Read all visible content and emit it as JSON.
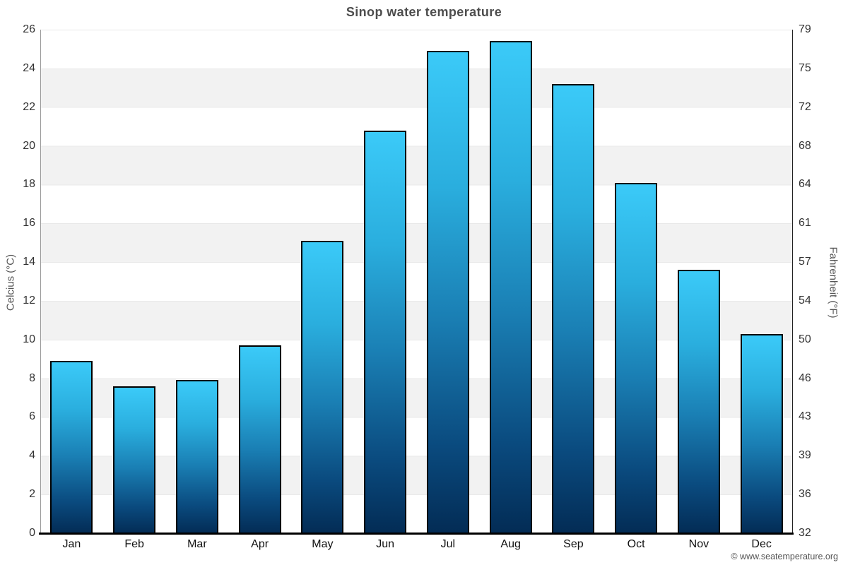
{
  "title": "Sinop water temperature",
  "footer": "© www.seatemperature.org",
  "chart_data": {
    "type": "bar",
    "title": "Sinop water temperature",
    "categories": [
      "Jan",
      "Feb",
      "Mar",
      "Apr",
      "May",
      "Jun",
      "Jul",
      "Aug",
      "Sep",
      "Oct",
      "Nov",
      "Dec"
    ],
    "values": [
      8.9,
      7.6,
      7.9,
      9.7,
      15.1,
      20.8,
      24.9,
      25.4,
      23.2,
      18.1,
      13.6,
      10.3
    ],
    "xlabel": "",
    "ylabel_left": "Celcius (°C)",
    "ylabel_right": "Fahrenheit (°F)",
    "ylim": [
      0,
      26
    ],
    "celsius_ticks": [
      26,
      24,
      22,
      20,
      18,
      16,
      14,
      12,
      10,
      8,
      6,
      4,
      2,
      0
    ],
    "fahrenheit_ticks": [
      79,
      75,
      72,
      68,
      64,
      61,
      57,
      54,
      50,
      46,
      43,
      39,
      36,
      32
    ],
    "legend": "none",
    "grid": "horizontal-bands",
    "band_colors": [
      "#ffffff",
      "#f2f2f2"
    ],
    "bar_gradient_top": "#3bcaf8",
    "bar_gradient_bottom": "#032c55",
    "bar_border_color": "#000000"
  }
}
